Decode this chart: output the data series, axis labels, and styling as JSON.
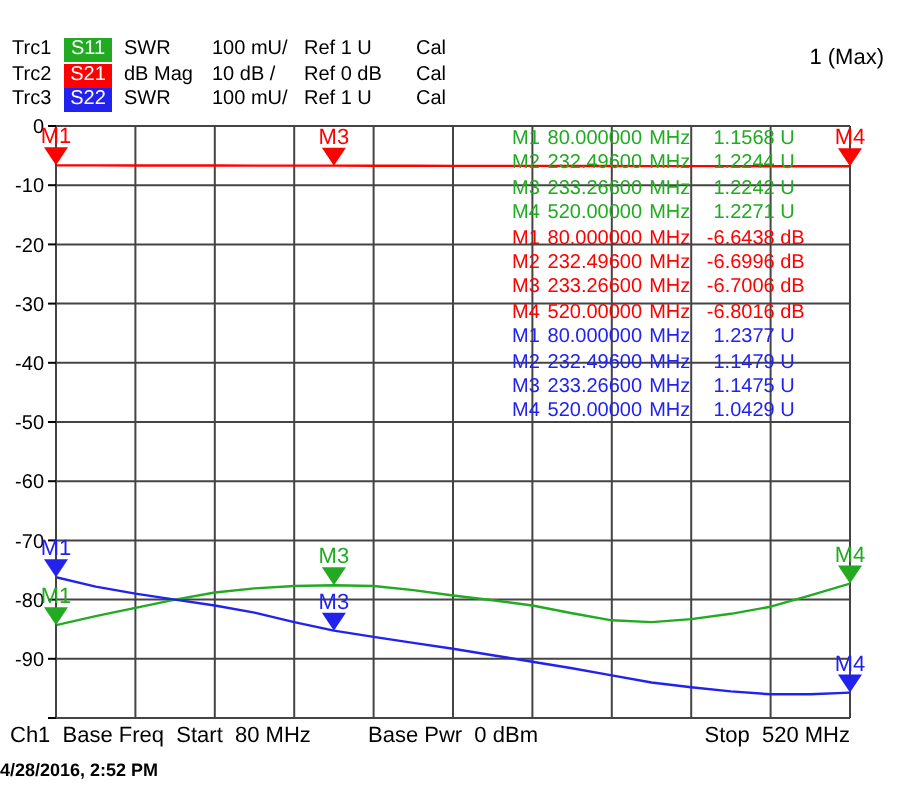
{
  "chart_data": {
    "type": "line",
    "legend": "top left",
    "categories": [
      null,
      null,
      null,
      null,
      null,
      null,
      null,
      null,
      null,
      null,
      null,
      null,
      null,
      null,
      null,
      null,
      null,
      null,
      null,
      null,
      null
    ],
    "ylim": [
      -100,
      0
    ],
    "yticks": [
      0,
      -10,
      -20,
      -30,
      -40,
      -50,
      -60,
      -70,
      -80,
      -90,
      {
        "value": -100,
        "label": null
      }
    ],
    "y2lim": [
      1,
      2
    ],
    "tick_labels": "y",
    "grid": true,
    "series": [
      {
        "name": "S11",
        "type": "line",
        "axis": "y2",
        "color": "#22aa22",
        "values": [
          1.1568,
          1.172,
          1.186,
          1.2,
          1.212,
          1.219,
          1.223,
          1.2242,
          1.223,
          1.216,
          1.207,
          1.199,
          1.19,
          1.177,
          1.165,
          1.162,
          1.167,
          1.176,
          1.188,
          1.207,
          1.2271
        ],
        "value_labels": [
          "M1",
          null,
          null,
          null,
          null,
          null,
          null,
          "M3",
          null,
          null,
          null,
          null,
          null,
          null,
          null,
          null,
          null,
          null,
          null,
          null,
          "M4"
        ]
      },
      {
        "name": "S21",
        "type": "line",
        "color": "#ff0000",
        "values": [
          -6.6438,
          -6.65,
          -6.66,
          -6.67,
          -6.68,
          -6.69,
          -6.695,
          -6.7006,
          -6.71,
          -6.72,
          -6.73,
          -6.74,
          -6.74,
          -6.75,
          -6.76,
          -6.77,
          -6.78,
          -6.78,
          -6.79,
          -6.8,
          -6.8016
        ],
        "value_labels": [
          "M1",
          null,
          null,
          null,
          null,
          null,
          null,
          "M3",
          null,
          null,
          null,
          null,
          null,
          null,
          null,
          null,
          null,
          null,
          null,
          null,
          "M4"
        ]
      },
      {
        "name": "S22",
        "type": "line",
        "axis": "y2",
        "color": "#2222ee",
        "values": [
          1.2377,
          1.222,
          1.21,
          1.2,
          1.19,
          1.178,
          1.162,
          1.1475,
          1.137,
          1.127,
          1.117,
          1.106,
          1.095,
          1.084,
          1.072,
          1.06,
          1.052,
          1.045,
          1.04,
          1.04,
          1.0429
        ],
        "value_labels": [
          "M1",
          null,
          null,
          null,
          null,
          null,
          null,
          "M3",
          null,
          null,
          null,
          null,
          null,
          null,
          null,
          null,
          null,
          null,
          null,
          null,
          "M4"
        ]
      }
    ],
    "annotations": [
      "Trc1",
      "SWR",
      "100 mU/",
      "Ref 1 U",
      "Cal",
      "Trc2",
      "dB Mag",
      "10 dB /",
      "Ref 0 dB",
      "Cal",
      "Trc3",
      "SWR",
      "100 mU/",
      "Ref 1 U",
      "Cal",
      "1 (Max)",
      "M1  80.000000  MHz  1.1568  U",
      "M2  232.49600  MHz  1.2244  U",
      "M3  233.26600  MHz  1.2242  U",
      "M4  520.00000  MHz  1.2271  U",
      "M1  80.000000  MHz  -6.6438  dB",
      "M2  232.49600  MHz  -6.6996  dB",
      "M3  233.26600  MHz  -6.7006  dB",
      "M4  520.00000  MHz  -6.8016  dB",
      "M1  80.000000  MHz  1.2377  U",
      "M2  232.49600  MHz  1.1479  U",
      "M3  233.26600  MHz  1.1475  U",
      "M4  520.00000  MHz  1.0429  U",
      "Ch1  Base Freq  Start  80 MHz",
      "Base Pwr  0 dBm",
      "Stop  520 MHz",
      "4/28/2016, 2:52 PM"
    ]
  }
}
